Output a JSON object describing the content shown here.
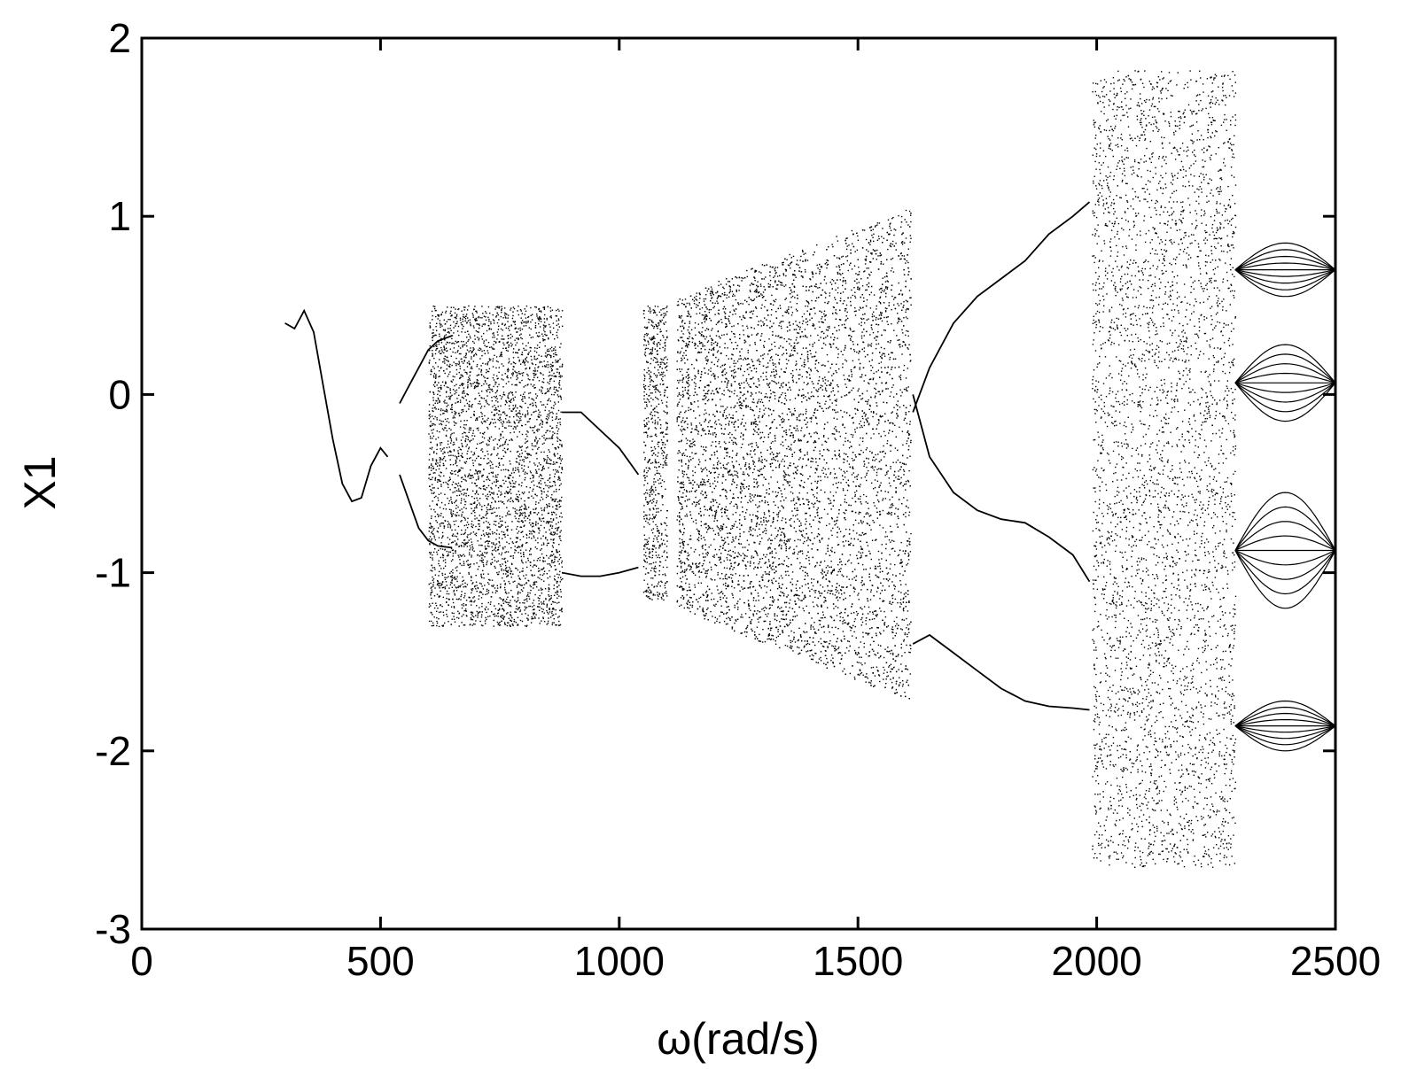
{
  "chart_data": {
    "type": "scatter",
    "title": "",
    "xlabel": "ω(rad/s)",
    "ylabel": "X1",
    "xlim": [
      0,
      2500
    ],
    "ylim": [
      -3,
      2
    ],
    "xticks": [
      0,
      500,
      1000,
      1500,
      2000,
      2500
    ],
    "yticks": [
      -3,
      -2,
      -1,
      0,
      1,
      2
    ],
    "xtick_labels": [
      "0",
      "500",
      "1000",
      "1500",
      "2000",
      "2500"
    ],
    "ytick_labels": [
      "-3",
      "-2",
      "-1",
      "0",
      "1",
      "2"
    ],
    "grid": false,
    "legend": "none",
    "marker_color": "#000000",
    "series": [
      {
        "values_kind": "period-1 branch",
        "points": [
          [
            300,
            0.4
          ],
          [
            320,
            0.37
          ],
          [
            340,
            0.47
          ],
          [
            360,
            0.35
          ],
          [
            380,
            0.05
          ],
          [
            400,
            -0.25
          ],
          [
            420,
            -0.5
          ],
          [
            440,
            -0.6
          ],
          [
            460,
            -0.58
          ],
          [
            480,
            -0.4
          ],
          [
            500,
            -0.3
          ],
          [
            515,
            -0.35
          ]
        ]
      },
      {
        "values_kind": "upper branch",
        "points": [
          [
            540,
            -0.05
          ],
          [
            560,
            0.05
          ],
          [
            580,
            0.15
          ],
          [
            600,
            0.25
          ],
          [
            620,
            0.3
          ],
          [
            650,
            0.33
          ]
        ]
      },
      {
        "values_kind": "lower branch",
        "points": [
          [
            540,
            -0.45
          ],
          [
            560,
            -0.6
          ],
          [
            580,
            -0.75
          ],
          [
            600,
            -0.82
          ],
          [
            620,
            -0.85
          ],
          [
            650,
            -0.86
          ]
        ]
      },
      {
        "values_kind": "upper return",
        "points": [
          [
            880,
            -0.1
          ],
          [
            920,
            -0.1
          ],
          [
            960,
            -0.2
          ],
          [
            1000,
            -0.3
          ],
          [
            1040,
            -0.45
          ]
        ]
      },
      {
        "values_kind": "lower return",
        "points": [
          [
            880,
            -1.0
          ],
          [
            920,
            -1.02
          ],
          [
            960,
            -1.02
          ],
          [
            1000,
            -1.0
          ],
          [
            1040,
            -0.97
          ]
        ]
      },
      {
        "values_kind": "upper smooth branch",
        "points": [
          [
            1615,
            -0.1
          ],
          [
            1650,
            0.15
          ],
          [
            1700,
            0.4
          ],
          [
            1750,
            0.55
          ],
          [
            1800,
            0.65
          ],
          [
            1850,
            0.75
          ],
          [
            1900,
            0.9
          ],
          [
            1950,
            1.0
          ],
          [
            1985,
            1.08
          ]
        ]
      },
      {
        "values_kind": "middle smooth branch",
        "points": [
          [
            1615,
            0.0
          ],
          [
            1650,
            -0.35
          ],
          [
            1700,
            -0.55
          ],
          [
            1750,
            -0.65
          ],
          [
            1800,
            -0.7
          ],
          [
            1850,
            -0.72
          ],
          [
            1900,
            -0.8
          ],
          [
            1950,
            -0.9
          ],
          [
            1985,
            -1.05
          ]
        ]
      },
      {
        "values_kind": "lower smooth branch",
        "points": [
          [
            1615,
            -1.4
          ],
          [
            1650,
            -1.35
          ],
          [
            1700,
            -1.45
          ],
          [
            1750,
            -1.55
          ],
          [
            1800,
            -1.65
          ],
          [
            1850,
            -1.72
          ],
          [
            1900,
            -1.75
          ],
          [
            1950,
            -1.76
          ],
          [
            1985,
            -1.77
          ]
        ]
      }
    ],
    "chaotic_bands": [
      {
        "x_range": [
          600,
          880
        ],
        "y_range": [
          -1.3,
          0.5
        ]
      },
      {
        "x_range": [
          1050,
          1100
        ],
        "y_range": [
          -1.15,
          0.5
        ]
      },
      {
        "x_range": [
          1120,
          1610
        ],
        "y_range_start": [
          -1.2,
          0.55
        ],
        "y_range_end": [
          -1.72,
          1.05
        ]
      },
      {
        "x_range": [
          1990,
          2290
        ],
        "y_range": [
          -2.65,
          1.82
        ]
      }
    ],
    "periodic_bands": [
      {
        "x_range": [
          2290,
          2500
        ],
        "y_ranges": [
          [
            0.55,
            0.85
          ],
          [
            -0.15,
            0.28
          ],
          [
            -1.2,
            -0.55
          ],
          [
            -2.0,
            -1.72
          ]
        ]
      }
    ]
  }
}
